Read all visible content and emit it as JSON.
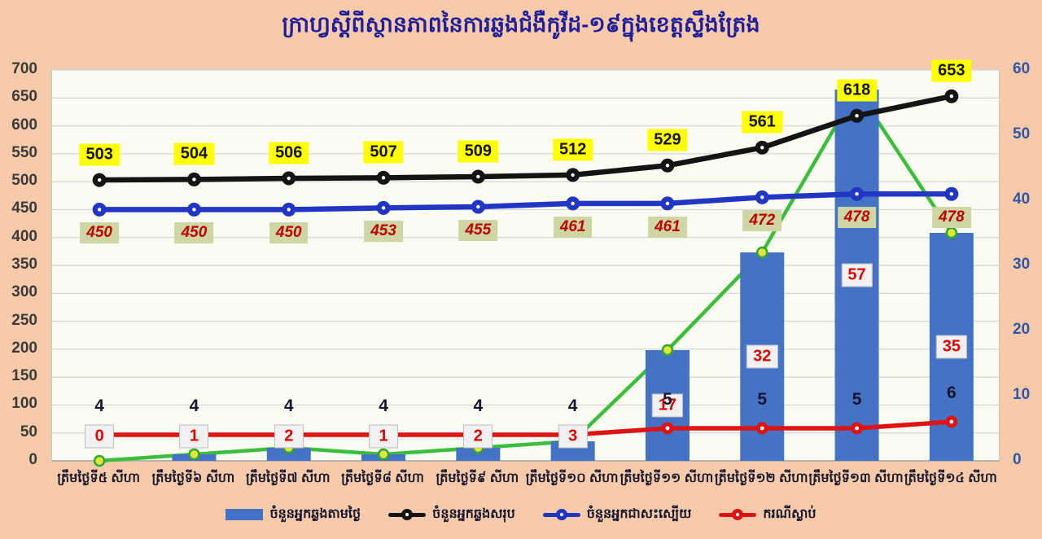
{
  "title": "ក្រាហ្វស្ដីពីស្ថានភាពនៃការឆ្លងជំងឺកូវីដ-១៩ក្នុងខេត្តស្ទឹងត្រែង",
  "colors": {
    "background": "#F7CBA9",
    "plot_background": "#FBFCF1",
    "gridline": "#DADADA",
    "bar": "#4472C4",
    "total_line": "#141414",
    "recovered_line": "#2236C4",
    "death_line": "#DE1414",
    "daily_trend_line": "#3BBE3B",
    "trend_marker_fill": "#E4E43A",
    "title_text": "#1F1F9B",
    "left_axis_text": "#3B3B3B",
    "right_axis_text": "#3056A8",
    "total_label_bg": "#FFFF00",
    "recovered_label_bg": "#CDD6A4",
    "daily_label_bg": "#F1F1F1",
    "daily_label_text": "#E00000"
  },
  "chart_data": {
    "type": "bar",
    "subtype": "combo-bar-line",
    "title": "ក្រាហ្វស្ដីពីស្ថានភាពនៃការឆ្លងជំងឺកូវីដ-១៩ក្នុងខេត្តស្ទឹងត្រែង",
    "categories": [
      "ត្រឹមថ្ងៃទី៥ សីហា",
      "ត្រឹមថ្ងៃទី៦ សីហា",
      "ត្រឹមថ្ងៃទី៧ សីហា",
      "ត្រឹមថ្ងៃទី៨ សីហា",
      "ត្រឹមថ្ងៃទី៩ សីហា",
      "ត្រឹមថ្ងៃទី១០ សីហា",
      "ត្រឹមថ្ងៃទី១១ សីហា",
      "ត្រឹមថ្ងៃទី១២ សីហា",
      "ត្រឹមថ្ងៃទី១៣ សីហា",
      "ត្រឹមថ្ងៃទី១៤ សីហា"
    ],
    "series": [
      {
        "name": "ចំនួនអ្នកឆ្លងតាមថ្ងៃ",
        "type": "bar",
        "axis": "right",
        "color": "#4472C4",
        "values": [
          0,
          1,
          2,
          1,
          2,
          3,
          17,
          32,
          57,
          35
        ],
        "label_style": "daily"
      },
      {
        "name": "",
        "type": "line",
        "axis": "right",
        "color": "#3BBE3B",
        "values": [
          0,
          1,
          2,
          1,
          2,
          3,
          17,
          32,
          57,
          35
        ],
        "label_style": "none",
        "marker": "yellow-green"
      },
      {
        "name": "ចំនួនអ្នកឆ្លងសរុប",
        "type": "line",
        "axis": "left",
        "color": "#141414",
        "values": [
          503,
          504,
          506,
          507,
          509,
          512,
          529,
          561,
          618,
          653
        ],
        "label_style": "total",
        "marker": "dark-dot"
      },
      {
        "name": "ចំនួនអ្នកជាសះស្បើយ",
        "type": "line",
        "axis": "left",
        "color": "#2236C4",
        "values": [
          450,
          450,
          450,
          453,
          455,
          461,
          461,
          472,
          478,
          478
        ],
        "label_style": "recovered",
        "marker": "dark-dot"
      },
      {
        "name": "ករណីស្លាប់",
        "type": "line",
        "axis": "right",
        "color": "#DE1414",
        "values": [
          4,
          4,
          4,
          4,
          4,
          4,
          5,
          5,
          5,
          6
        ],
        "label_style": "death",
        "marker": "dark-dot"
      }
    ],
    "left_axis": {
      "min": 0,
      "max": 700,
      "step": 50,
      "ticks": [
        0,
        50,
        100,
        150,
        200,
        250,
        300,
        350,
        400,
        450,
        500,
        550,
        600,
        650,
        700
      ]
    },
    "right_axis": {
      "min": 0,
      "max": 60,
      "step": 10,
      "ticks": [
        0,
        10,
        20,
        30,
        40,
        50,
        60
      ]
    },
    "grid": true,
    "legend_position": "bottom"
  },
  "legend": {
    "items": [
      {
        "label": "ចំនួនអ្នកឆ្លងតាមថ្ងៃ",
        "swatch": "bar",
        "color": "#4472C4"
      },
      {
        "label": "ចំនួនអ្នកឆ្លងសរុប",
        "swatch": "line",
        "color": "#141414"
      },
      {
        "label": "ចំនួនអ្នកជាសះស្បើយ",
        "swatch": "line",
        "color": "#2236C4"
      },
      {
        "label": "ករណីស្លាប់",
        "swatch": "line",
        "color": "#DE1414"
      }
    ]
  }
}
